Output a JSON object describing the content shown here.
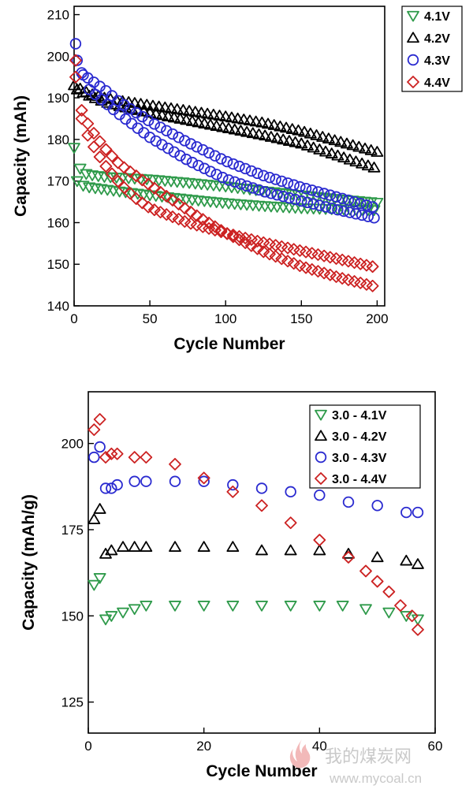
{
  "watermark": {
    "text": "我的煤炭网",
    "url": "www.mycoal.cn"
  },
  "chart_data": [
    {
      "type": "scatter",
      "xlabel": "Cycle Number",
      "ylabel": "Capacity (mAh)",
      "xlim": [
        0,
        205
      ],
      "ylim": [
        140,
        212
      ],
      "xticks": [
        0,
        50,
        100,
        150,
        200
      ],
      "yticks": [
        140,
        150,
        160,
        170,
        180,
        190,
        200,
        210
      ],
      "grid": false,
      "legend_position": "top-right",
      "series": [
        {
          "name": "4.1V",
          "color": "#2e9a4a",
          "marker": "triangle-down",
          "curves": [
            {
              "x": [
                0,
                2,
                5,
                10,
                20,
                30,
                50,
                75,
                100,
                125,
                150,
                175,
                200
              ],
              "y": [
                178,
                175,
                172,
                171.5,
                171,
                170.8,
                170.4,
                169.6,
                168.7,
                167.6,
                166.6,
                165.6,
                164.8
              ]
            },
            {
              "x": [
                2,
                5,
                10,
                20,
                30,
                50,
                75,
                100,
                125,
                150,
                175,
                200
              ],
              "y": [
                170,
                169,
                168.5,
                168,
                167.5,
                166.6,
                165.6,
                164.7,
                164,
                163.5,
                163.2,
                163
              ]
            }
          ]
        },
        {
          "name": "4.2V",
          "color": "#000000",
          "marker": "triangle-up",
          "curves": [
            {
              "x": [
                0,
                5,
                10,
                20,
                30,
                50,
                75,
                100,
                125,
                150,
                175,
                200
              ],
              "y": [
                193,
                192,
                191,
                190,
                189.3,
                188.2,
                186.9,
                185.5,
                184,
                182,
                179.5,
                177
              ]
            },
            {
              "x": [
                2,
                10,
                20,
                30,
                50,
                75,
                100,
                125,
                150,
                175,
                200
              ],
              "y": [
                192,
                190.5,
                189,
                188,
                186.4,
                184.6,
                182.8,
                181,
                179,
                176,
                173
              ]
            }
          ]
        },
        {
          "name": "4.3V",
          "color": "#2a2ad0",
          "marker": "circle",
          "curves": [
            {
              "x": [
                1,
                5,
                10,
                20,
                30,
                50,
                75,
                100,
                125,
                150,
                175,
                200
              ],
              "y": [
                203,
                196,
                194.5,
                192,
                189,
                184.3,
                179.3,
                174.8,
                171.3,
                168.5,
                166,
                163.5
              ]
            },
            {
              "x": [
                2,
                10,
                20,
                30,
                50,
                75,
                100,
                125,
                150,
                175,
                200
              ],
              "y": [
                199,
                192,
                189,
                186,
                180.5,
                175,
                170.5,
                167.5,
                165.2,
                163,
                161
              ]
            }
          ]
        },
        {
          "name": "4.4V",
          "color": "#cc2222",
          "marker": "diamond",
          "curves": [
            {
              "x": [
                1,
                5,
                10,
                20,
                30,
                40,
                50,
                75,
                100,
                125,
                150,
                175,
                200
              ],
              "y": [
                199,
                185,
                180,
                174,
                169.5,
                166,
                163.5,
                160,
                157.5,
                155.2,
                153.2,
                151.2,
                149.2
              ]
            },
            {
              "x": [
                1,
                5,
                10,
                20,
                30,
                50,
                75,
                100,
                125,
                150,
                175,
                200
              ],
              "y": [
                195,
                187,
                183,
                178,
                174,
                169,
                163,
                157.5,
                153,
                149.5,
                146.8,
                144.5
              ]
            }
          ]
        }
      ]
    },
    {
      "type": "scatter",
      "xlabel": "Cycle Number",
      "ylabel": "Capacity (mAh/g)",
      "xlim": [
        0,
        60
      ],
      "ylim": [
        116,
        215
      ],
      "xticks": [
        0,
        20,
        40,
        60
      ],
      "yticks": [
        125,
        150,
        175,
        200
      ],
      "grid": false,
      "legend_position": "top-right",
      "series": [
        {
          "name": "3.0 - 4.1V",
          "color": "#2e9a4a",
          "marker": "triangle-down",
          "x": [
            1,
            2,
            3,
            4,
            6,
            8,
            10,
            15,
            20,
            25,
            30,
            35,
            40,
            44,
            48,
            52,
            55,
            57
          ],
          "y": [
            159,
            161,
            149,
            150,
            151,
            152,
            153,
            153,
            153,
            153,
            153,
            153,
            153,
            153,
            152,
            151,
            150,
            149
          ]
        },
        {
          "name": "3.0 - 4.2V",
          "color": "#000000",
          "marker": "triangle-up",
          "x": [
            1,
            2,
            3,
            4,
            6,
            8,
            10,
            15,
            20,
            25,
            30,
            35,
            40,
            45,
            50,
            55,
            57
          ],
          "y": [
            178,
            181,
            168,
            169,
            170,
            170,
            170,
            170,
            170,
            170,
            169,
            169,
            169,
            168,
            167,
            166,
            165
          ]
        },
        {
          "name": "3.0 - 4.3V",
          "color": "#2a2ad0",
          "marker": "circle",
          "x": [
            1,
            2,
            3,
            4,
            5,
            8,
            10,
            15,
            20,
            25,
            30,
            35,
            40,
            45,
            50,
            55,
            57
          ],
          "y": [
            196,
            199,
            187,
            187,
            188,
            189,
            189,
            189,
            189,
            188,
            187,
            186,
            185,
            183,
            182,
            180,
            180
          ]
        },
        {
          "name": "3.0 - 4.4V",
          "color": "#cc2222",
          "marker": "diamond",
          "x": [
            1,
            2,
            3,
            4,
            5,
            8,
            10,
            15,
            20,
            25,
            30,
            35,
            40,
            45,
            48,
            50,
            52,
            54,
            56,
            57
          ],
          "y": [
            204,
            207,
            196,
            197,
            197,
            196,
            196,
            194,
            190,
            186,
            182,
            177,
            172,
            167,
            163,
            160,
            157,
            153,
            150,
            146
          ]
        }
      ]
    }
  ]
}
